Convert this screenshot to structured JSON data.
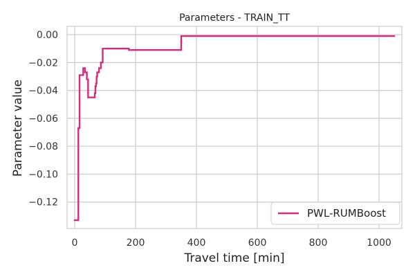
{
  "chart_data": {
    "type": "line",
    "title": "Parameters - TRAIN_TT",
    "xlabel": "Travel time [min]",
    "ylabel": "Parameter value",
    "xlim": [
      -25,
      1075
    ],
    "ylim": [
      -0.139,
      0.006
    ],
    "grid": true,
    "legend_position": "lower right",
    "x_ticks": [
      0,
      200,
      400,
      600,
      800,
      1000
    ],
    "x_tick_labels": [
      "0",
      "200",
      "400",
      "600",
      "800",
      "1000"
    ],
    "y_ticks": [
      0.0,
      -0.02,
      -0.04,
      -0.06,
      -0.08,
      -0.1,
      -0.12
    ],
    "y_tick_labels": [
      "0.00",
      "−0.02",
      "−0.04",
      "−0.06",
      "−0.08",
      "−0.10",
      "−0.12"
    ],
    "series": [
      {
        "name": "PWL-RUMBoost",
        "color": "#d62a7f",
        "step": true,
        "x": [
          0,
          12,
          12,
          16,
          16,
          20,
          20,
          28,
          28,
          30,
          30,
          34,
          34,
          40,
          40,
          44,
          44,
          50,
          50,
          66,
          66,
          68,
          68,
          70,
          70,
          72,
          72,
          74,
          74,
          80,
          80,
          86,
          86,
          92,
          92,
          178,
          178,
          350,
          350,
          1050
        ],
        "y": [
          -0.133,
          -0.133,
          -0.067,
          -0.067,
          -0.029,
          -0.029,
          -0.029,
          -0.029,
          -0.024,
          -0.024,
          -0.024,
          -0.024,
          -0.027,
          -0.027,
          -0.032,
          -0.032,
          -0.045,
          -0.045,
          -0.045,
          -0.045,
          -0.042,
          -0.042,
          -0.037,
          -0.037,
          -0.035,
          -0.035,
          -0.03,
          -0.03,
          -0.027,
          -0.027,
          -0.024,
          -0.024,
          -0.02,
          -0.02,
          -0.01,
          -0.01,
          -0.011,
          -0.011,
          -0.001,
          -0.001
        ]
      }
    ]
  }
}
